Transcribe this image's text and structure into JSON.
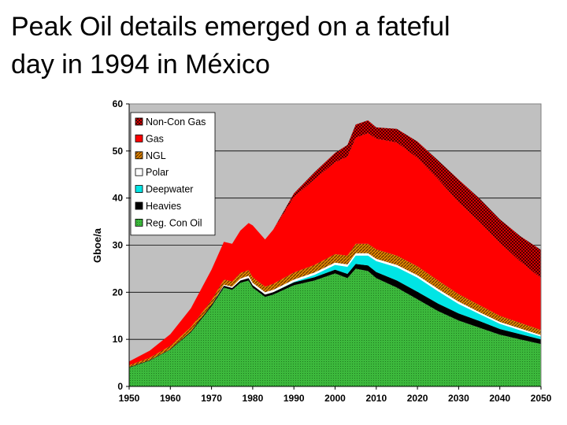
{
  "slide": {
    "title_line1": "Peak Oil details emerged on a fateful",
    "title_line2": "day in 1994 in México"
  },
  "chart_data": {
    "type": "area",
    "stacked": true,
    "ylabel": "Gboe/a",
    "xlabel": "",
    "xlim": [
      1950,
      2050
    ],
    "ylim": [
      0,
      60
    ],
    "x_ticks": [
      1950,
      1960,
      1970,
      1980,
      1990,
      2000,
      2010,
      2020,
      2030,
      2040,
      2050
    ],
    "y_ticks": [
      0,
      10,
      20,
      30,
      40,
      50,
      60
    ],
    "grid": "horizontal",
    "plot_background": "#c0c0c0",
    "legend_position": "top-left",
    "x": [
      1950,
      1955,
      1960,
      1965,
      1970,
      1973,
      1975,
      1977,
      1979,
      1980,
      1983,
      1985,
      1990,
      1995,
      2000,
      2003,
      2005,
      2008,
      2010,
      2015,
      2020,
      2025,
      2030,
      2035,
      2040,
      2045,
      2050
    ],
    "series": [
      {
        "name": "Reg. Con Oil",
        "color": "#33b233",
        "pattern": "dots-green",
        "values": [
          4,
          5.5,
          7.8,
          11.5,
          17,
          21,
          20.5,
          22,
          22.5,
          21,
          19,
          19.5,
          21.5,
          22.5,
          24,
          23,
          25,
          24.5,
          23,
          21,
          18.5,
          16,
          14,
          12.5,
          11,
          10,
          9
        ]
      },
      {
        "name": "Heavies",
        "color": "#000000",
        "pattern": "solid",
        "values": [
          0.1,
          0.1,
          0.1,
          0.2,
          0.3,
          0.4,
          0.4,
          0.5,
          0.5,
          0.5,
          0.5,
          0.5,
          0.6,
          0.7,
          0.8,
          0.9,
          1.0,
          1.2,
          1.3,
          1.5,
          1.6,
          1.6,
          1.5,
          1.4,
          1.2,
          1.1,
          1.0
        ]
      },
      {
        "name": "Deepwater",
        "color": "#00e5e5",
        "pattern": "solid",
        "values": [
          0,
          0,
          0,
          0,
          0,
          0,
          0,
          0,
          0,
          0,
          0,
          0,
          0.1,
          0.5,
          1.0,
          1.5,
          1.8,
          2.1,
          2.3,
          2.8,
          3.0,
          2.6,
          2.0,
          1.5,
          1.1,
          0.8,
          0.6
        ]
      },
      {
        "name": "Polar",
        "color": "#ffffff",
        "pattern": "solid",
        "values": [
          0,
          0,
          0,
          0,
          0,
          0.2,
          0.3,
          0.4,
          0.5,
          0.5,
          0.5,
          0.5,
          0.5,
          0.5,
          0.5,
          0.5,
          0.5,
          0.5,
          0.5,
          0.5,
          0.5,
          0.5,
          0.5,
          0.4,
          0.4,
          0.4,
          0.3
        ]
      },
      {
        "name": "NGL",
        "color": "#c06000",
        "pattern": "diag-orange",
        "values": [
          0.4,
          0.5,
          0.7,
          0.9,
          1.0,
          1.1,
          1.1,
          1.2,
          1.2,
          1.2,
          1.2,
          1.3,
          1.5,
          1.6,
          1.8,
          1.9,
          2.0,
          2.0,
          2.0,
          2.0,
          1.9,
          1.8,
          1.6,
          1.5,
          1.3,
          1.2,
          1.1
        ]
      },
      {
        "name": "Gas",
        "color": "#ff0000",
        "pattern": "solid",
        "values": [
          0.8,
          1.5,
          2.5,
          4.0,
          6.5,
          8.0,
          8.0,
          9.0,
          10.0,
          11.0,
          10.0,
          11.5,
          16.0,
          18.2,
          19.5,
          21.0,
          22.5,
          23.5,
          23.5,
          24.0,
          23.0,
          21.5,
          19.5,
          17.7,
          15.5,
          13.0,
          11.0
        ]
      },
      {
        "name": "Non-Con Gas",
        "color": "#cc0000",
        "pattern": "checker-red",
        "values": [
          0,
          0,
          0,
          0,
          0,
          0,
          0,
          0,
          0,
          0,
          0,
          0,
          0.8,
          1.5,
          2.0,
          2.5,
          2.8,
          2.7,
          2.4,
          2.9,
          3.5,
          4.0,
          4.8,
          5.0,
          5.0,
          5.4,
          6.0
        ]
      }
    ],
    "legend_order": [
      "Non-Con Gas",
      "Gas",
      "NGL",
      "Polar",
      "Deepwater",
      "Heavies",
      "Reg. Con Oil"
    ]
  }
}
